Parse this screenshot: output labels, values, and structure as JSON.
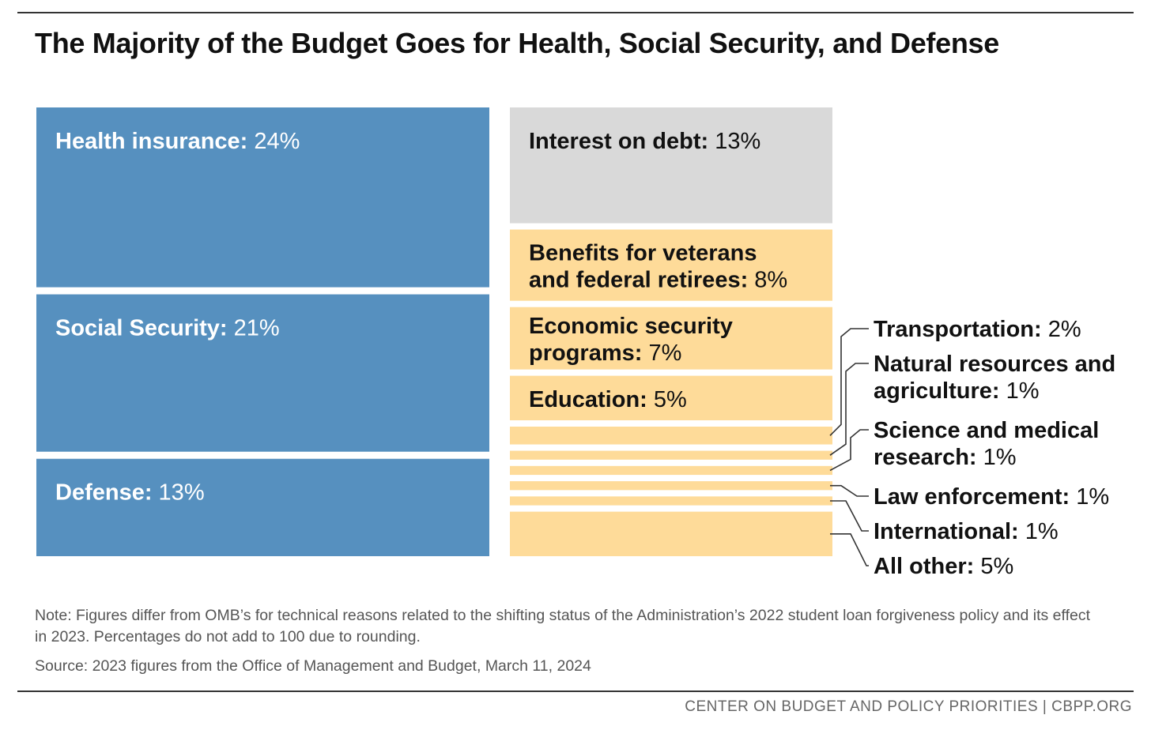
{
  "title": "The Majority of the Budget Goes for Health, Social Security, and Defense",
  "chart_data": {
    "type": "treemap",
    "unit": "%",
    "colors": {
      "major": "#5690bf",
      "interest": "#d9d9d9",
      "other": "#fedb99"
    },
    "groups": [
      {
        "group": "major",
        "items": [
          {
            "name": "Health insurance",
            "value": 24
          },
          {
            "name": "Social Security",
            "value": 21
          },
          {
            "name": "Defense",
            "value": 13
          }
        ]
      },
      {
        "group": "interest",
        "items": [
          {
            "name": "Interest on debt",
            "value": 13
          }
        ]
      },
      {
        "group": "other",
        "items": [
          {
            "name": "Benefits for veterans and federal retirees",
            "lines": [
              "Benefits for veterans",
              "and federal retirees"
            ],
            "value": 8
          },
          {
            "name": "Economic security programs",
            "lines": [
              "Economic security",
              "programs"
            ],
            "value": 7
          },
          {
            "name": "Education",
            "value": 5
          },
          {
            "name": "Transportation",
            "value": 2
          },
          {
            "name": "Natural resources and agriculture",
            "lines": [
              "Natural resources and",
              "agriculture"
            ],
            "value": 1
          },
          {
            "name": "Science and medical research",
            "lines": [
              "Science and medical",
              "research"
            ],
            "value": 1
          },
          {
            "name": "Law enforcement",
            "value": 1
          },
          {
            "name": "International",
            "value": 1
          },
          {
            "name": "All other",
            "value": 5
          }
        ]
      }
    ]
  },
  "note": "Note: Figures differ from OMB’s for technical reasons related to the shifting status of the Administration’s 2022 student loan forgiveness policy and its effect in 2023. Percentages do not add to 100 due to rounding.",
  "source": "Source: 2023 figures from the Office of Management and Budget, March 11, 2024",
  "footer": "CENTER ON BUDGET AND POLICY PRIORITIES | CBPP.ORG"
}
